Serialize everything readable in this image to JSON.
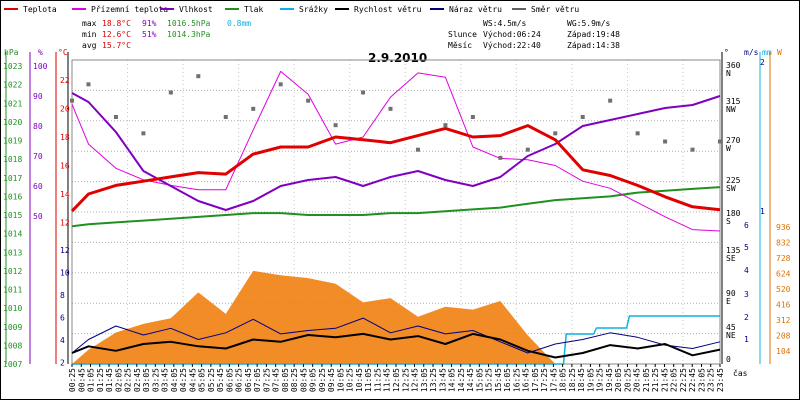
{
  "chart_data": {
    "type": "line",
    "title": "2.9.2010",
    "legend": [
      {
        "name": "Teplota",
        "color": "#e00000"
      },
      {
        "name": "Přízemní teplota",
        "color": "#e000e0"
      },
      {
        "name": "Vlhkost",
        "color": "#8000c0"
      },
      {
        "name": "Tlak",
        "color": "#209020"
      },
      {
        "name": "Srážky",
        "color": "#10b0e0"
      },
      {
        "name": "Rychlost větru",
        "color": "#000000"
      },
      {
        "name": "Náraz větru",
        "color": "#000080"
      },
      {
        "name": "Směr větru",
        "color": "#606060"
      }
    ],
    "stats": {
      "max": {
        "label": "max",
        "temp": "18.8°C",
        "hum": "91%",
        "press": "1016.5hPa",
        "rain": "0.8mm"
      },
      "min": {
        "label": "min",
        "temp": "12.6°C",
        "hum": "51%",
        "press": "1014.3hPa"
      },
      "avg": {
        "label": "avg",
        "temp": "15.7°C"
      }
    },
    "wind_info": {
      "ws": "WS:4.5m/s",
      "wg": "WG:5.9m/s"
    },
    "sun_info": {
      "label": "Slunce",
      "rise": "Východ:06:24",
      "set": "Západ:19:48"
    },
    "moon_info": {
      "label": "Měsíc",
      "rise": "Východ:22:40",
      "set": "Západ:14:38"
    },
    "axes": {
      "hpa": {
        "label": "hPa",
        "ticks": [
          "1023",
          "1022",
          "1021",
          "1020",
          "1019",
          "1018",
          "1017",
          "1016",
          "1015",
          "1014",
          "1013",
          "1012",
          "1011",
          "1010",
          "1009",
          "1008",
          "1007"
        ],
        "color": "#209020"
      },
      "pct": {
        "label": "%",
        "ticks": [
          "100",
          "90",
          "80",
          "70",
          "60",
          "50"
        ],
        "color": "#8000c0"
      },
      "temp": {
        "label": "°C",
        "ticks": [
          "22",
          "20",
          "18",
          "16",
          "14",
          "12"
        ],
        "color": "#e00000"
      },
      "wind_left": {
        "ticks": [
          "12",
          "10",
          "8",
          "6",
          "4",
          "2"
        ]
      },
      "dir": {
        "label": "°",
        "ticks": [
          "360 N",
          "315 NW",
          "270 W",
          "225 SW",
          "180 S",
          "135 SE",
          "90 E",
          "45 NE",
          "0"
        ]
      },
      "ms": {
        "label": "m/s",
        "ticks": [
          "2",
          "1",
          "6",
          "5",
          "4",
          "3",
          "2",
          "1"
        ],
        "color": "#000080"
      },
      "mm": {
        "label": "mm",
        "ticks": [
          "2",
          "1"
        ],
        "color": "#10b0e0"
      },
      "w": {
        "label": "W",
        "ticks": [
          "936",
          "832",
          "728",
          "624",
          "520",
          "416",
          "312",
          "208",
          "104"
        ],
        "color": "#e07000"
      },
      "x_label": "čas",
      "x_ticks": [
        "00:25",
        "00:45",
        "01:05",
        "01:25",
        "01:45",
        "02:05",
        "02:25",
        "02:45",
        "03:05",
        "03:25",
        "03:45",
        "04:05",
        "04:25",
        "04:45",
        "05:05",
        "05:25",
        "05:45",
        "06:05",
        "06:25",
        "06:45",
        "07:05",
        "07:25",
        "07:45",
        "08:05",
        "08:25",
        "08:45",
        "09:05",
        "09:25",
        "09:45",
        "10:05",
        "10:25",
        "10:45",
        "11:05",
        "11:25",
        "11:45",
        "12:05",
        "12:25",
        "12:45",
        "13:05",
        "13:25",
        "13:45",
        "14:05",
        "14:25",
        "14:45",
        "15:05",
        "15:25",
        "15:45",
        "16:05",
        "16:25",
        "16:45",
        "17:05",
        "17:25",
        "17:45",
        "18:05",
        "18:25",
        "18:45",
        "19:05",
        "19:25",
        "19:45",
        "20:05",
        "20:25",
        "20:45",
        "21:05",
        "21:25",
        "21:45",
        "22:05",
        "22:25",
        "22:45",
        "23:05",
        "23:25",
        "23:45"
      ]
    },
    "x_hours": [
      0.4,
      24
    ],
    "series": [
      {
        "name": "Teplota",
        "x": [
          0.4,
          1,
          2,
          3,
          4,
          5,
          6,
          7,
          8,
          9,
          10,
          11,
          12,
          13,
          14,
          15,
          16,
          17,
          18,
          19,
          20,
          21,
          22,
          23,
          24
        ],
        "y": [
          12.8,
          14.0,
          14.6,
          14.9,
          15.2,
          15.5,
          15.4,
          16.8,
          17.3,
          17.3,
          18.0,
          17.8,
          17.6,
          18.1,
          18.6,
          18.0,
          18.1,
          18.8,
          17.8,
          15.7,
          15.3,
          14.6,
          13.8,
          13.1,
          12.9
        ]
      },
      {
        "name": "Přízemní teplota",
        "x": [
          0.4,
          1,
          2,
          3,
          4,
          5,
          6,
          7,
          8,
          9,
          10,
          11,
          12,
          13,
          14,
          15,
          16,
          17,
          18,
          19,
          20,
          21,
          22,
          23,
          24
        ],
        "y": [
          20.3,
          17.5,
          15.8,
          15.0,
          14.6,
          14.3,
          14.3,
          18.5,
          22.6,
          21.0,
          17.5,
          18.0,
          20.8,
          22.5,
          22.2,
          17.3,
          16.5,
          16.4,
          16.0,
          14.9,
          14.4,
          13.4,
          12.4,
          11.5,
          11.4
        ]
      },
      {
        "name": "Vlhkost",
        "x": [
          0.4,
          1,
          2,
          3,
          4,
          5,
          6,
          7,
          8,
          9,
          10,
          11,
          12,
          13,
          14,
          15,
          16,
          17,
          18,
          19,
          20,
          21,
          22,
          23,
          24
        ],
        "y": [
          91,
          88,
          78,
          65,
          60,
          55,
          52,
          55,
          60,
          62,
          63,
          60,
          63,
          65,
          62,
          60,
          63,
          70,
          74,
          80,
          82,
          84,
          86,
          87,
          90
        ]
      },
      {
        "name": "Tlak",
        "x": [
          0.4,
          1,
          2,
          3,
          4,
          5,
          6,
          7,
          8,
          9,
          10,
          11,
          12,
          13,
          14,
          15,
          16,
          17,
          18,
          19,
          20,
          21,
          22,
          23,
          24
        ],
        "y": [
          1014.4,
          1014.5,
          1014.6,
          1014.7,
          1014.8,
          1014.9,
          1015.0,
          1015.1,
          1015.1,
          1015.0,
          1015.0,
          1015.0,
          1015.1,
          1015.1,
          1015.2,
          1015.3,
          1015.4,
          1015.6,
          1015.8,
          1015.9,
          1016.0,
          1016.2,
          1016.3,
          1016.4,
          1016.5
        ]
      },
      {
        "name": "Srážky",
        "x": [
          0.4,
          18.3,
          18.4,
          19.4,
          19.5,
          20.6,
          20.7,
          24
        ],
        "y": [
          0,
          0,
          0.5,
          0.5,
          0.6,
          0.6,
          0.8,
          0.8
        ]
      },
      {
        "name": "Rychlost větru",
        "x": [
          0.4,
          1,
          2,
          3,
          4,
          5,
          6,
          7,
          8,
          9,
          10,
          11,
          12,
          13,
          14,
          15,
          16,
          17,
          18,
          19,
          20,
          21,
          22,
          23,
          24
        ],
        "y": [
          2.8,
          3.4,
          3.0,
          3.6,
          3.8,
          3.4,
          3.2,
          4.0,
          3.8,
          4.4,
          4.2,
          4.5,
          4.0,
          4.3,
          3.6,
          4.5,
          4.0,
          3.0,
          2.4,
          2.8,
          3.5,
          3.2,
          3.6,
          2.6,
          3.1
        ]
      },
      {
        "name": "Náraz větru",
        "x": [
          0.4,
          1,
          2,
          3,
          4,
          5,
          6,
          7,
          8,
          9,
          10,
          11,
          12,
          13,
          14,
          15,
          16,
          17,
          18,
          19,
          20,
          21,
          22,
          23,
          24
        ],
        "y": [
          2.8,
          4.0,
          5.2,
          4.4,
          5.0,
          4.0,
          4.6,
          5.8,
          4.5,
          4.8,
          5.0,
          5.9,
          4.6,
          5.2,
          4.5,
          4.8,
          3.8,
          2.8,
          3.6,
          4.0,
          4.6,
          4.2,
          3.5,
          3.2,
          3.8
        ]
      },
      {
        "name": "Sluneční záření",
        "x": [
          0.4,
          1,
          2,
          3,
          4,
          5,
          6,
          7,
          8,
          9,
          10,
          11,
          12,
          13,
          14,
          15,
          16,
          17,
          18,
          19,
          20,
          21,
          22,
          23,
          24
        ],
        "y": [
          0,
          100,
          220,
          280,
          320,
          500,
          350,
          650,
          620,
          600,
          560,
          430,
          460,
          330,
          400,
          380,
          440,
          200,
          0,
          0,
          0,
          0,
          0,
          0,
          0
        ]
      },
      {
        "name": "Směr větru",
        "x": [
          0.4,
          1,
          2,
          3,
          4,
          5,
          6,
          7,
          8,
          9,
          10,
          11,
          12,
          13,
          14,
          15,
          16,
          17,
          18,
          19,
          20,
          21,
          22,
          23,
          24
        ],
        "y": [
          320,
          340,
          300,
          280,
          330,
          350,
          300,
          310,
          340,
          320,
          290,
          330,
          310,
          260,
          290,
          300,
          250,
          260,
          280,
          300,
          320,
          280,
          270,
          260,
          270
        ]
      }
    ]
  }
}
